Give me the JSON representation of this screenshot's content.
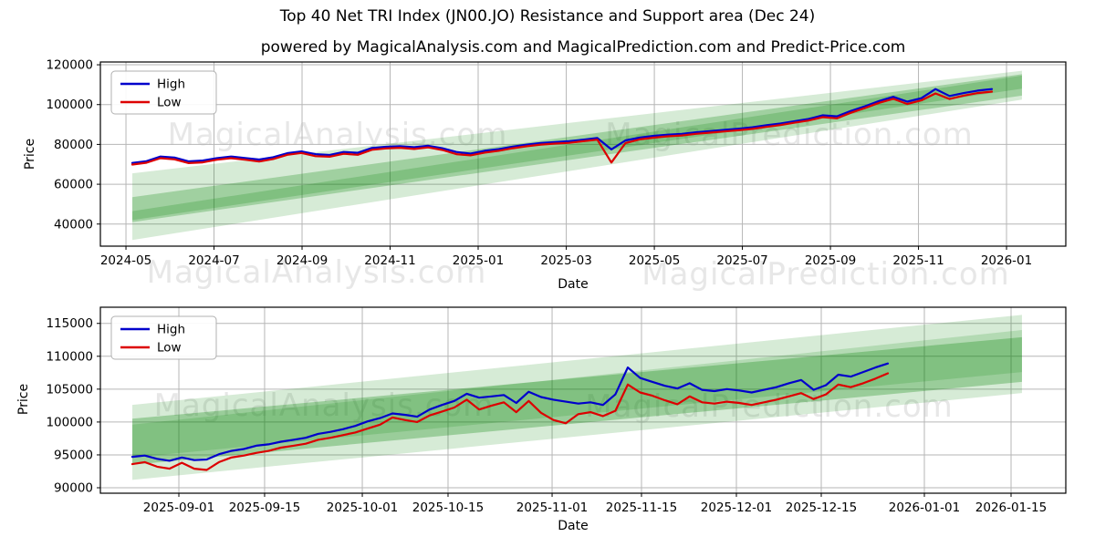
{
  "title": "Top 40 Net TRI Index (JN00.JO) Resistance and Support area (Dec 24)",
  "subtitle": "powered by MagicalAnalysis.com and MagicalPrediction.com and Predict-Price.com",
  "watermarks": {
    "left": "MagicalAnalysis.com",
    "right": "MagicalPrediction.com"
  },
  "colors": {
    "high": "#0000cc",
    "low": "#dd0000",
    "band": "#008000",
    "grid": "#b6b6b6",
    "spine": "#000000",
    "watermark": "#e7e7e7"
  },
  "chart_data": [
    {
      "type": "line",
      "name": "full-history",
      "ylabel": "Price",
      "xlabel": "Date",
      "ylim": [
        28900,
        121400
      ],
      "yticks": [
        40000,
        60000,
        80000,
        100000,
        120000
      ],
      "xticks": {
        "labels": [
          "2024-05",
          "2024-07",
          "2024-09",
          "2024-11",
          "2025-01",
          "2025-03",
          "2025-05",
          "2025-07",
          "2025-09",
          "2025-11",
          "2026-01"
        ],
        "fracs": [
          0.0265,
          0.1177,
          0.2089,
          0.3001,
          0.3913,
          0.4826,
          0.5738,
          0.665,
          0.7562,
          0.8474,
          0.9386
        ]
      },
      "legend": {
        "entries": [
          "High",
          "Low"
        ],
        "position": "upper-left"
      },
      "grid": true,
      "series": [
        {
          "name": "High",
          "color": "#0000cc",
          "x0": 0.0331,
          "x1": 0.9234,
          "values": [
            70700,
            71600,
            73900,
            73400,
            71500,
            71900,
            73100,
            73900,
            73200,
            72400,
            73600,
            75600,
            76500,
            75100,
            74700,
            76200,
            75800,
            78200,
            78800,
            79100,
            78600,
            79300,
            78100,
            76200,
            75400,
            76800,
            77600,
            78900,
            79900,
            80700,
            81200,
            81600,
            82400,
            83200,
            77500,
            82000,
            83400,
            84300,
            84900,
            85300,
            86100,
            86700,
            87300,
            87900,
            88600,
            89600,
            90500,
            91700,
            92800,
            94600,
            94100,
            96800,
            99200,
            101800,
            103900,
            101500,
            103200,
            107800,
            104300,
            105800,
            107000,
            107800
          ]
        },
        {
          "name": "Low",
          "color": "#dd0000",
          "x0": 0.0331,
          "x1": 0.9234,
          "values": [
            69900,
            70800,
            73100,
            72500,
            70600,
            71000,
            72300,
            73100,
            72300,
            71400,
            72700,
            74800,
            75700,
            74100,
            73800,
            75300,
            74800,
            77300,
            78000,
            78300,
            77700,
            78500,
            77200,
            75100,
            74500,
            75900,
            76800,
            78100,
            79100,
            79900,
            80400,
            80800,
            81600,
            82400,
            70900,
            80700,
            82500,
            83400,
            84100,
            84500,
            85300,
            85900,
            86500,
            87100,
            87800,
            88800,
            89700,
            90900,
            92000,
            93700,
            93100,
            95900,
            98300,
            100900,
            102900,
            100300,
            102100,
            105600,
            102800,
            104500,
            105800,
            106500
          ]
        }
      ],
      "bands": [
        {
          "x0": 0.0331,
          "x1": 0.9546,
          "top": [
            65500,
            117000
          ],
          "bottom": [
            32000,
            102500
          ],
          "opacity": 0.16
        },
        {
          "x0": 0.0331,
          "x1": 0.9546,
          "top": [
            53500,
            115300
          ],
          "bottom": [
            41000,
            104500
          ],
          "opacity": 0.25
        },
        {
          "x0": 0.0331,
          "x1": 0.9546,
          "top": [
            46500,
            114600
          ],
          "bottom": [
            42000,
            108000
          ],
          "opacity": 0.2
        }
      ]
    },
    {
      "type": "line",
      "name": "recent-zoom",
      "ylabel": "Price",
      "xlabel": "Date",
      "ylim": [
        89170,
        117460
      ],
      "yticks": [
        90000,
        95000,
        100000,
        105000,
        110000,
        115000
      ],
      "xticks": {
        "labels": [
          "2025-09-01",
          "2025-09-15",
          "2025-10-01",
          "2025-10-15",
          "2025-11-01",
          "2025-11-15",
          "2025-12-01",
          "2025-12-15",
          "2026-01-01",
          "2026-01-15"
        ],
        "fracs": [
          0.0813,
          0.1701,
          0.2713,
          0.3601,
          0.4679,
          0.5605,
          0.6588,
          0.7467,
          0.8535,
          0.9433
        ]
      },
      "legend": {
        "entries": [
          "High",
          "Low"
        ],
        "position": "upper-left"
      },
      "grid": true,
      "series": [
        {
          "name": "High",
          "color": "#0000cc",
          "x0": 0.0331,
          "x1": 0.8157,
          "values": [
            94700,
            94900,
            94400,
            94100,
            94600,
            94200,
            94300,
            95100,
            95600,
            95900,
            96400,
            96600,
            97000,
            97300,
            97600,
            98200,
            98500,
            98900,
            99400,
            100100,
            100600,
            101300,
            101100,
            100800,
            101900,
            102600,
            103200,
            104300,
            103700,
            103900,
            104100,
            102900,
            104600,
            103800,
            103400,
            103100,
            102800,
            103000,
            102600,
            104200,
            108300,
            106700,
            106100,
            105500,
            105100,
            105900,
            104900,
            104700,
            105000,
            104800,
            104500,
            104900,
            105300,
            105900,
            106400,
            104900,
            105600,
            107200,
            106900,
            107600,
            108300,
            108900
          ]
        },
        {
          "name": "Low",
          "color": "#dd0000",
          "x0": 0.0331,
          "x1": 0.8157,
          "values": [
            93600,
            93900,
            93200,
            92900,
            93800,
            92900,
            92700,
            93900,
            94600,
            94900,
            95300,
            95600,
            96100,
            96400,
            96700,
            97300,
            97600,
            98000,
            98400,
            99000,
            99600,
            100700,
            100300,
            100000,
            101000,
            101600,
            102200,
            103400,
            101900,
            102500,
            103000,
            101500,
            103200,
            101400,
            100300,
            99800,
            101200,
            101500,
            100900,
            101700,
            105700,
            104500,
            104000,
            103300,
            102700,
            103900,
            103000,
            102800,
            103100,
            102900,
            102600,
            103000,
            103400,
            103900,
            104400,
            103500,
            104200,
            105700,
            105300,
            105900,
            106600,
            107400
          ]
        }
      ],
      "bands": [
        {
          "x0": 0.0331,
          "x1": 0.9546,
          "top": [
            102600,
            116300
          ],
          "bottom": [
            91200,
            104400
          ],
          "opacity": 0.16
        },
        {
          "x0": 0.0331,
          "x1": 0.9546,
          "top": [
            100500,
            112900
          ],
          "bottom": [
            93500,
            106100
          ],
          "opacity": 0.28
        },
        {
          "x0": 0.0331,
          "x1": 0.9546,
          "top": [
            99600,
            114000
          ],
          "bottom": [
            94600,
            107600
          ],
          "opacity": 0.16
        }
      ]
    }
  ]
}
